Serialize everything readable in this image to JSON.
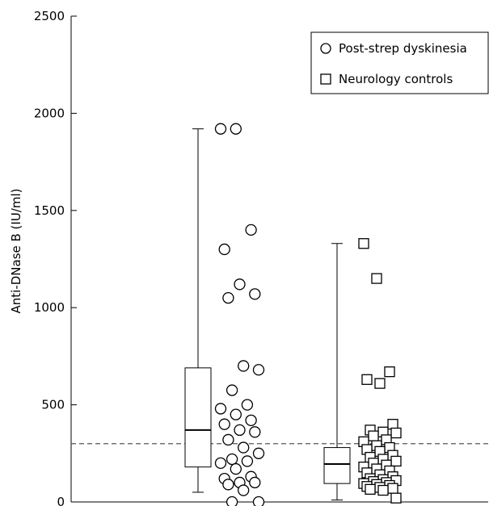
{
  "chart_data": {
    "type": "box-strip",
    "xlabel": "",
    "ylabel": "Anti-DNase B (IU/ml)",
    "ylim": [
      0,
      2500
    ],
    "yticks": [
      0,
      500,
      1000,
      1500,
      2000,
      2500
    ],
    "reference_line": 300,
    "legend": [
      {
        "label": "Post-strep dyskinesia",
        "marker": "circle"
      },
      {
        "label": "Neurology controls",
        "marker": "square"
      }
    ],
    "legend_position": "top-right",
    "grid": false,
    "series": [
      {
        "name": "Post-strep dyskinesia",
        "marker": "circle",
        "box": {
          "min": 50,
          "q1": 180,
          "median": 370,
          "q3": 690,
          "max": 1920
        },
        "points": [
          1920,
          1920,
          1400,
          1300,
          1120,
          1070,
          1050,
          700,
          680,
          575,
          500,
          480,
          450,
          420,
          400,
          370,
          360,
          320,
          280,
          250,
          220,
          210,
          200,
          170,
          130,
          120,
          100,
          100,
          90,
          60,
          0,
          0
        ]
      },
      {
        "name": "Neurology controls",
        "marker": "square",
        "box": {
          "min": 10,
          "q1": 95,
          "median": 195,
          "q3": 280,
          "max": 1330
        },
        "points": [
          1330,
          1150,
          670,
          630,
          610,
          400,
          370,
          360,
          355,
          340,
          320,
          310,
          290,
          280,
          270,
          260,
          240,
          230,
          220,
          210,
          200,
          190,
          180,
          170,
          160,
          150,
          140,
          130,
          120,
          115,
          110,
          105,
          100,
          95,
          90,
          85,
          80,
          75,
          70,
          65,
          60,
          20
        ]
      }
    ]
  }
}
